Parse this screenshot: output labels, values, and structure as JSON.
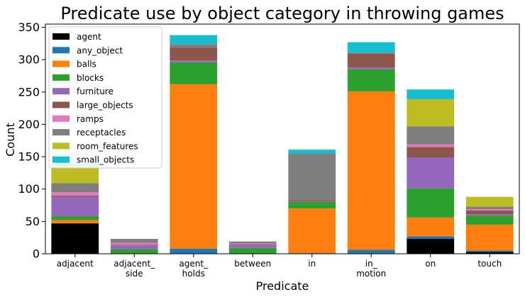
{
  "chart_data": {
    "type": "bar",
    "stacked": true,
    "title": "Predicate use by object category in throwing games",
    "xlabel": "Predicate",
    "ylabel": "Count",
    "ylim": [
      0,
      355
    ],
    "yticks": [
      0,
      50,
      100,
      150,
      200,
      250,
      300,
      350
    ],
    "grid": false,
    "legend_position": "top-left",
    "categories": [
      [
        "adjacent"
      ],
      [
        "adjacent_",
        "side"
      ],
      [
        "agent_",
        "holds"
      ],
      [
        "between"
      ],
      [
        "in"
      ],
      [
        "in_",
        "motion"
      ],
      [
        "on"
      ],
      [
        "touch"
      ]
    ],
    "series": [
      {
        "name": "agent",
        "color": "#000000",
        "values": [
          47,
          0,
          0,
          0,
          0,
          0,
          23,
          3
        ]
      },
      {
        "name": "any_object",
        "color": "#1f77b4",
        "values": [
          0,
          0,
          8,
          0,
          1,
          6,
          4,
          2
        ]
      },
      {
        "name": "balls",
        "color": "#ff7f0e",
        "values": [
          5,
          0,
          254,
          0,
          69,
          245,
          29,
          40
        ]
      },
      {
        "name": "blocks",
        "color": "#2ca02c",
        "values": [
          6,
          7,
          34,
          9,
          10,
          34,
          45,
          14
        ]
      },
      {
        "name": "furniture",
        "color": "#9467bd",
        "values": [
          30,
          6,
          3,
          5,
          1,
          3,
          48,
          2
        ]
      },
      {
        "name": "large_objects",
        "color": "#8c564b",
        "values": [
          2,
          1,
          20,
          1,
          2,
          21,
          16,
          6
        ]
      },
      {
        "name": "ramps",
        "color": "#e377c2",
        "values": [
          5,
          3,
          0,
          1,
          0,
          0,
          4,
          2
        ]
      },
      {
        "name": "receptacles",
        "color": "#7f7f7f",
        "values": [
          14,
          6,
          5,
          3,
          72,
          2,
          28,
          4
        ]
      },
      {
        "name": "room_features",
        "color": "#bcbd22",
        "values": [
          27,
          0,
          0,
          0,
          0,
          0,
          42,
          15
        ]
      },
      {
        "name": "small_objects",
        "color": "#17becf",
        "values": [
          3,
          0,
          14,
          0,
          6,
          16,
          15,
          0
        ]
      }
    ]
  }
}
